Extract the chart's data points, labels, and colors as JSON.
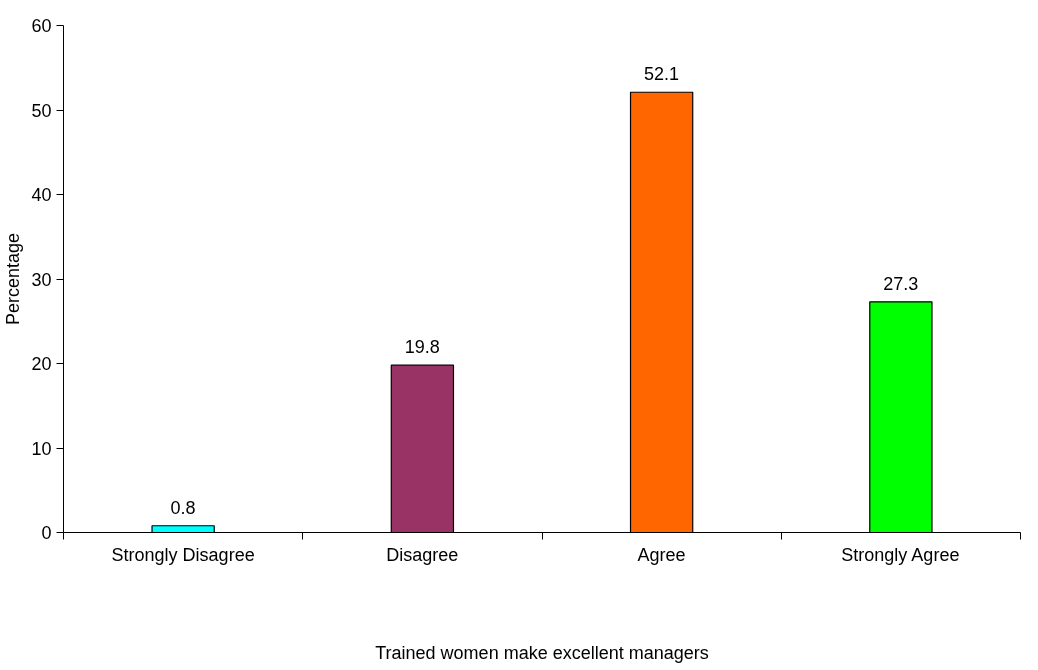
{
  "chart_data": {
    "type": "bar",
    "xlabel": "Trained women make excellent managers",
    "ylabel": "Percentage",
    "categories": [
      "Strongly Disagree",
      "Disagree",
      "Agree",
      "Strongly Agree"
    ],
    "values": [
      0.8,
      19.8,
      52.1,
      27.3
    ],
    "colors": [
      "#00ffff",
      "#993366",
      "#ff6600",
      "#00ff00"
    ],
    "ylim": [
      0,
      60
    ],
    "yticks": [
      0,
      10,
      20,
      30,
      40,
      50,
      60
    ],
    "data_labels": true,
    "grid": false
  }
}
